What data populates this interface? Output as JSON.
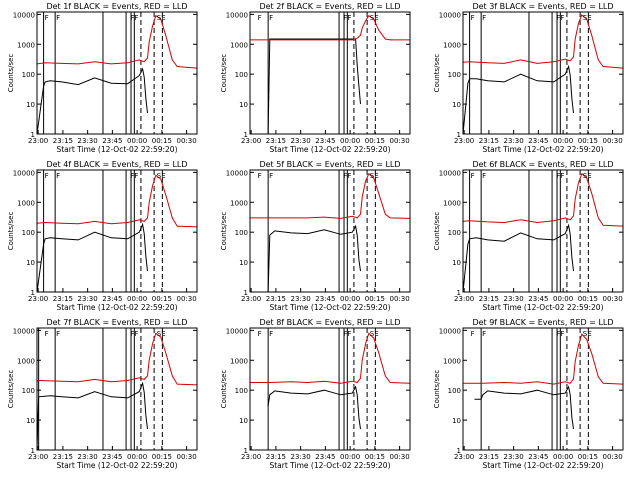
{
  "figure": {
    "xlabel": "Start Time (12-Oct-02 22:59:20)",
    "ylabel": "Counts/sec",
    "colors": {
      "black_series": "#000000",
      "red_series": "#d40000",
      "axes": "#000000",
      "background": "#ffffff"
    }
  },
  "chart_data": [
    {
      "type": "line",
      "title": "Det 1f BLACK = Events, RED = LLD",
      "xlabel": "Start Time (12-Oct-02 22:59:20)",
      "ylabel": "Counts/sec",
      "x_ticks": [
        "23:00",
        "23:15",
        "23:30",
        "23:45",
        "00:00",
        "00:15",
        "00:30"
      ],
      "y_ticks": [
        "1",
        "10",
        "100",
        "1000",
        "10000"
      ],
      "xlim_minutes": [
        0,
        97
      ],
      "ylim": [
        1,
        12000
      ],
      "yscale": "log",
      "markers": [
        "F",
        "F",
        "FF",
        "SE"
      ],
      "series": [
        {
          "name": "Events",
          "color": "black",
          "x": [
            0,
            4,
            5,
            8,
            15,
            25,
            35,
            45,
            55,
            62,
            64,
            65,
            66,
            67
          ],
          "y": [
            1,
            40,
            55,
            60,
            55,
            45,
            75,
            50,
            48,
            90,
            150,
            80,
            15,
            5
          ]
        },
        {
          "name": "LLD",
          "color": "red",
          "x": [
            0,
            5,
            15,
            25,
            35,
            45,
            55,
            62,
            65,
            67,
            68,
            70,
            72,
            75,
            78,
            82,
            85,
            97
          ],
          "y": [
            220,
            240,
            230,
            220,
            260,
            220,
            240,
            300,
            260,
            350,
            1200,
            4000,
            9000,
            7000,
            2000,
            300,
            180,
            160
          ]
        }
      ],
      "vlines_solid": [
        4,
        11,
        40,
        54,
        57,
        59
      ],
      "vlines_dashed": [
        63,
        71,
        76
      ]
    },
    {
      "type": "line",
      "title": "Det 2f BLACK = Events, RED = LLD",
      "xlabel": "Start Time (12-Oct-02 22:59:20)",
      "ylabel": "Counts/sec",
      "x_ticks": [
        "23:00",
        "23:15",
        "23:30",
        "23:45",
        "00:00",
        "00:15",
        "00:30"
      ],
      "y_ticks": [
        "1",
        "10",
        "100",
        "1000",
        "10000"
      ],
      "xlim_minutes": [
        0,
        97
      ],
      "ylim": [
        1,
        12000
      ],
      "yscale": "log",
      "markers": [
        "F",
        "F",
        "FF",
        "SE"
      ],
      "series": [
        {
          "name": "Events",
          "color": "black",
          "x": [
            0,
            11,
            12,
            13,
            14,
            40,
            55,
            62,
            64,
            65,
            66,
            67
          ],
          "y": [
            1,
            1,
            1500,
            1500,
            1500,
            1500,
            1500,
            1500,
            1500,
            200,
            40,
            10
          ]
        },
        {
          "name": "LLD",
          "color": "red",
          "x": [
            0,
            12,
            40,
            55,
            62,
            65,
            67,
            68,
            70,
            72,
            75,
            78,
            82,
            85,
            97
          ],
          "y": [
            1400,
            1400,
            1400,
            1400,
            1400,
            1600,
            2000,
            3500,
            6000,
            9000,
            7000,
            3000,
            1500,
            1400,
            1400
          ]
        }
      ],
      "vlines_solid": [
        11,
        54,
        57,
        59
      ],
      "vlines_dashed": [
        63,
        71,
        76
      ]
    },
    {
      "type": "line",
      "title": "Det 3f BLACK = Events, RED = LLD",
      "xlabel": "Start Time (12-Oct-02 22:59:20)",
      "ylabel": "Counts/sec",
      "x_ticks": [
        "23:00",
        "23:15",
        "23:30",
        "23:45",
        "00:00",
        "00:15",
        "00:30"
      ],
      "y_ticks": [
        "1",
        "10",
        "100",
        "1000",
        "10000"
      ],
      "xlim_minutes": [
        0,
        97
      ],
      "ylim": [
        1,
        12000
      ],
      "yscale": "log",
      "markers": [
        "F",
        "F",
        "FF",
        "SE"
      ],
      "series": [
        {
          "name": "Events",
          "color": "black",
          "x": [
            0,
            3,
            4,
            8,
            15,
            25,
            35,
            45,
            55,
            62,
            64,
            65,
            66,
            67
          ],
          "y": [
            1,
            50,
            70,
            70,
            60,
            55,
            100,
            60,
            55,
            100,
            180,
            90,
            15,
            5
          ]
        },
        {
          "name": "LLD",
          "color": "red",
          "x": [
            0,
            4,
            15,
            25,
            35,
            45,
            55,
            62,
            65,
            67,
            68,
            70,
            72,
            75,
            78,
            82,
            85,
            97
          ],
          "y": [
            250,
            260,
            240,
            230,
            300,
            230,
            260,
            320,
            280,
            380,
            1500,
            5000,
            9500,
            7000,
            2000,
            300,
            180,
            160
          ]
        }
      ],
      "vlines_solid": [
        4,
        11,
        40,
        54,
        57,
        59
      ],
      "vlines_dashed": [
        63,
        71,
        76
      ]
    },
    {
      "type": "line",
      "title": "Det 4f BLACK = Events, RED = LLD",
      "xlabel": "Start Time (12-Oct-02 22:59:20)",
      "ylabel": "Counts/sec",
      "x_ticks": [
        "23:00",
        "23:15",
        "23:30",
        "23:45",
        "00:00",
        "00:15",
        "00:30"
      ],
      "y_ticks": [
        "1",
        "10",
        "100",
        "1000",
        "10000"
      ],
      "xlim_minutes": [
        0,
        97
      ],
      "ylim": [
        1,
        12000
      ],
      "yscale": "log",
      "markers": [
        "F",
        "F",
        "FF",
        "SE"
      ],
      "series": [
        {
          "name": "Events",
          "color": "black",
          "x": [
            0,
            4,
            5,
            8,
            15,
            25,
            35,
            45,
            55,
            62,
            64,
            65,
            66,
            67
          ],
          "y": [
            1,
            40,
            60,
            65,
            60,
            55,
            100,
            65,
            60,
            100,
            180,
            90,
            15,
            5
          ]
        },
        {
          "name": "LLD",
          "color": "red",
          "x": [
            0,
            5,
            15,
            25,
            35,
            45,
            55,
            62,
            65,
            67,
            68,
            70,
            72,
            75,
            78,
            82,
            85,
            97
          ],
          "y": [
            200,
            210,
            200,
            190,
            230,
            190,
            210,
            260,
            230,
            300,
            1000,
            3500,
            8000,
            6000,
            1800,
            300,
            160,
            150
          ]
        }
      ],
      "vlines_solid": [
        4,
        11,
        40,
        54,
        57,
        59
      ],
      "vlines_dashed": [
        63,
        71,
        76
      ]
    },
    {
      "type": "line",
      "title": "Det 5f BLACK = Events, RED = LLD",
      "xlabel": "Start Time (12-Oct-02 22:59:20)",
      "ylabel": "Counts/sec",
      "x_ticks": [
        "23:00",
        "23:15",
        "23:30",
        "23:45",
        "00:00",
        "00:15",
        "00:30"
      ],
      "y_ticks": [
        "1",
        "10",
        "100",
        "1000",
        "10000"
      ],
      "xlim_minutes": [
        0,
        97
      ],
      "ylim": [
        1,
        12000
      ],
      "yscale": "log",
      "markers": [
        "F",
        "F",
        "FF",
        "SE"
      ],
      "series": [
        {
          "name": "Events",
          "color": "black",
          "x": [
            0,
            11,
            12,
            15,
            25,
            35,
            45,
            55,
            62,
            64,
            65,
            66,
            67
          ],
          "y": [
            1,
            1,
            80,
            110,
            95,
            90,
            120,
            85,
            100,
            160,
            80,
            12,
            5
          ]
        },
        {
          "name": "LLD",
          "color": "red",
          "x": [
            0,
            12,
            25,
            35,
            45,
            55,
            62,
            65,
            67,
            68,
            70,
            72,
            75,
            78,
            82,
            85,
            97
          ],
          "y": [
            300,
            300,
            300,
            300,
            320,
            290,
            340,
            300,
            400,
            1500,
            5000,
            9000,
            6500,
            2000,
            400,
            300,
            290
          ]
        }
      ],
      "vlines_solid": [
        11,
        54,
        57,
        59
      ],
      "vlines_dashed": [
        63,
        71,
        76
      ]
    },
    {
      "type": "line",
      "title": "Det 6f BLACK = Events, RED = LLD",
      "xlabel": "Start Time (12-Oct-02 22:59:20)",
      "ylabel": "Counts/sec",
      "x_ticks": [
        "23:00",
        "23:15",
        "23:30",
        "23:45",
        "00:00",
        "00:15",
        "00:30"
      ],
      "y_ticks": [
        "1",
        "10",
        "100",
        "1000",
        "10000"
      ],
      "xlim_minutes": [
        0,
        97
      ],
      "ylim": [
        1,
        12000
      ],
      "yscale": "log",
      "markers": [
        "F",
        "F",
        "FF",
        "SE"
      ],
      "series": [
        {
          "name": "Events",
          "color": "black",
          "x": [
            0,
            3,
            4,
            8,
            15,
            25,
            35,
            45,
            55,
            62,
            64,
            65,
            66,
            67
          ],
          "y": [
            1,
            40,
            60,
            65,
            55,
            50,
            95,
            60,
            55,
            90,
            170,
            85,
            14,
            5
          ]
        },
        {
          "name": "LLD",
          "color": "red",
          "x": [
            0,
            4,
            15,
            25,
            35,
            45,
            55,
            62,
            65,
            67,
            68,
            70,
            72,
            75,
            78,
            82,
            85,
            97
          ],
          "y": [
            230,
            240,
            220,
            210,
            260,
            210,
            240,
            300,
            260,
            350,
            1300,
            4500,
            9000,
            6500,
            2000,
            300,
            170,
            160
          ]
        }
      ],
      "vlines_solid": [
        4,
        11,
        40,
        54,
        57,
        59
      ],
      "vlines_dashed": [
        63,
        71,
        76
      ]
    },
    {
      "type": "line",
      "title": "Det 7f BLACK = Events, RED = LLD",
      "xlabel": "Start Time (12-Oct-02 22:59:20)",
      "ylabel": "Counts/sec",
      "x_ticks": [
        "23:00",
        "23:15",
        "23:30",
        "23:45",
        "00:00",
        "00:15",
        "00:30"
      ],
      "y_ticks": [
        "1",
        "10",
        "100",
        "1000",
        "10000"
      ],
      "xlim_minutes": [
        0,
        97
      ],
      "ylim": [
        1,
        12000
      ],
      "yscale": "log",
      "markers": [
        "F",
        "F",
        "FF",
        "SE"
      ],
      "series": [
        {
          "name": "Events",
          "color": "black",
          "x": [
            0,
            1,
            8,
            15,
            25,
            35,
            45,
            55,
            62,
            64,
            65,
            66,
            67
          ],
          "y": [
            1,
            60,
            65,
            60,
            55,
            90,
            60,
            55,
            90,
            170,
            85,
            14,
            5
          ]
        },
        {
          "name": "LLD",
          "color": "red",
          "x": [
            0,
            1,
            15,
            25,
            35,
            45,
            55,
            62,
            65,
            67,
            68,
            70,
            72,
            75,
            78,
            82,
            85,
            97
          ],
          "y": [
            200,
            210,
            200,
            190,
            230,
            190,
            210,
            260,
            230,
            300,
            1000,
            3500,
            8000,
            6000,
            1800,
            300,
            160,
            150
          ]
        }
      ],
      "vlines_solid": [
        1,
        11,
        40,
        54,
        57,
        59
      ],
      "vlines_dashed": [
        63,
        71,
        76
      ]
    },
    {
      "type": "line",
      "title": "Det 8f BLACK = Events, RED = LLD",
      "xlabel": "Start Time (12-Oct-02 22:59:20)",
      "ylabel": "Counts/sec",
      "x_ticks": [
        "23:00",
        "23:15",
        "23:30",
        "23:45",
        "00:00",
        "00:15",
        "00:30"
      ],
      "y_ticks": [
        "1",
        "10",
        "100",
        "1000",
        "10000"
      ],
      "xlim_minutes": [
        0,
        97
      ],
      "ylim": [
        1,
        12000
      ],
      "yscale": "log",
      "markers": [
        "F",
        "F",
        "FF",
        "SE"
      ],
      "series": [
        {
          "name": "Events",
          "color": "black",
          "x": [
            11,
            12,
            15,
            25,
            35,
            45,
            55,
            62,
            64,
            65,
            66,
            67
          ],
          "y": [
            30,
            70,
            95,
            80,
            75,
            100,
            70,
            80,
            130,
            70,
            12,
            5
          ]
        },
        {
          "name": "LLD",
          "color": "red",
          "x": [
            0,
            12,
            25,
            35,
            45,
            55,
            62,
            65,
            67,
            68,
            70,
            72,
            75,
            78,
            82,
            85,
            97
          ],
          "y": [
            180,
            180,
            190,
            180,
            200,
            170,
            200,
            180,
            250,
            1000,
            3500,
            8000,
            5500,
            1800,
            300,
            180,
            170
          ]
        }
      ],
      "vlines_solid": [
        11,
        54,
        57,
        59
      ],
      "vlines_dashed": [
        63,
        71,
        76
      ]
    },
    {
      "type": "line",
      "title": "Det 9f BLACK = Events, RED = LLD",
      "xlabel": "Start Time (12-Oct-02 22:59:20)",
      "ylabel": "Counts/sec",
      "x_ticks": [
        "23:00",
        "23:15",
        "23:30",
        "23:45",
        "00:00",
        "00:15",
        "00:30"
      ],
      "y_ticks": [
        "1",
        "10",
        "100",
        "1000",
        "10000"
      ],
      "xlim_minutes": [
        0,
        97
      ],
      "ylim": [
        1,
        12000
      ],
      "yscale": "log",
      "markers": [
        "F",
        "F",
        "FF",
        "SE"
      ],
      "series": [
        {
          "name": "Events",
          "color": "black",
          "x": [
            7,
            11,
            12,
            15,
            25,
            35,
            45,
            55,
            62,
            64,
            65,
            66,
            67
          ],
          "y": [
            50,
            50,
            70,
            95,
            80,
            75,
            100,
            70,
            80,
            130,
            70,
            12,
            5
          ]
        },
        {
          "name": "LLD",
          "color": "red",
          "x": [
            0,
            12,
            25,
            35,
            45,
            55,
            62,
            65,
            67,
            68,
            70,
            72,
            75,
            78,
            82,
            85,
            97
          ],
          "y": [
            170,
            170,
            180,
            170,
            190,
            160,
            190,
            170,
            240,
            900,
            3200,
            7500,
            5000,
            1700,
            280,
            170,
            160
          ]
        }
      ],
      "vlines_solid": [
        11,
        54,
        57,
        59
      ],
      "vlines_dashed": [
        63,
        71,
        76
      ]
    }
  ]
}
